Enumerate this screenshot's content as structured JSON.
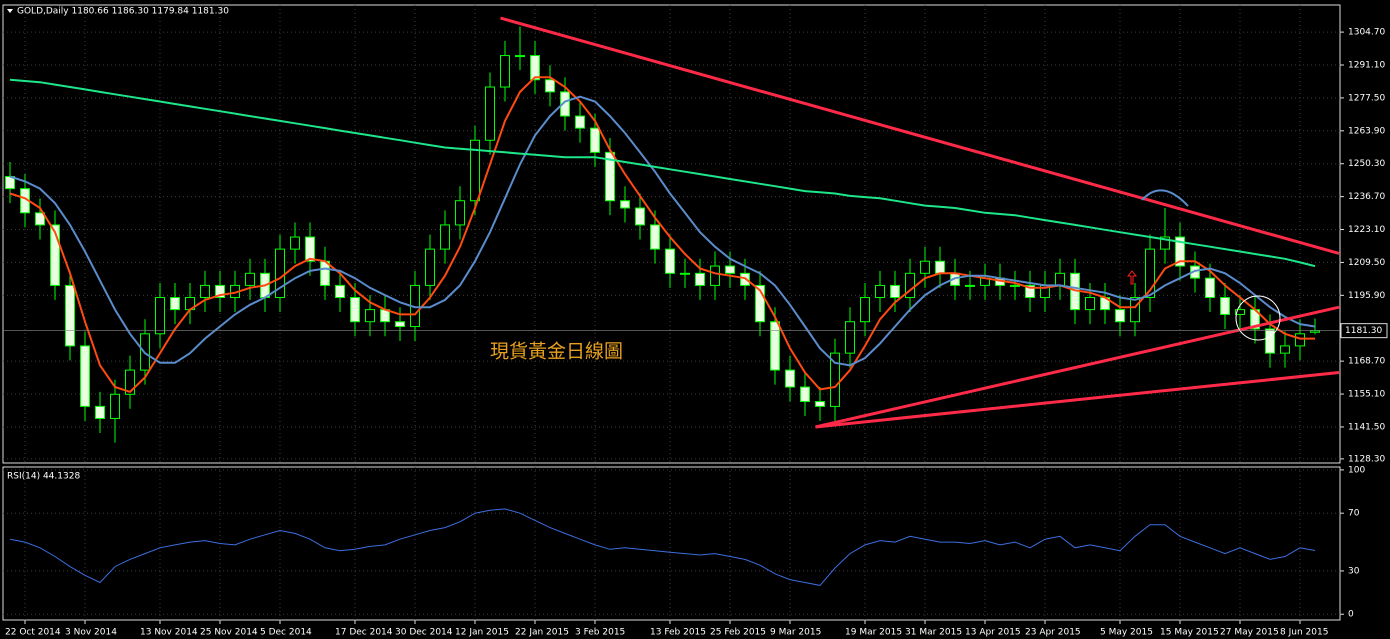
{
  "chart_data": {
    "type": "candlestick",
    "title": "GOLD,Daily  1180.66 1186.30 1179.84 1181.30",
    "annotation": "現貨黃金日線圖",
    "categories": [
      null,
      "22 Oct 2014",
      null,
      null,
      null,
      "3 Nov 2014",
      null,
      null,
      null,
      null,
      "13 Nov 2014",
      null,
      null,
      null,
      "25 Nov 2014",
      null,
      null,
      null,
      "5 Dec 2014",
      null,
      null,
      null,
      null,
      "17 Dec 2014",
      null,
      null,
      null,
      "30 Dec 2014",
      null,
      null,
      null,
      "12 Jan 2015",
      null,
      null,
      null,
      "22 Jan 2015",
      null,
      null,
      null,
      "3 Feb 2015",
      null,
      null,
      null,
      null,
      "13 Feb 2015",
      null,
      null,
      null,
      "25 Feb 2015",
      null,
      null,
      null,
      "9 Mar 2015",
      null,
      null,
      null,
      null,
      "19 Mar 2015",
      null,
      null,
      null,
      "31 Mar 2015",
      null,
      null,
      null,
      "13 Apr 2015",
      null,
      null,
      null,
      "23 Apr 2015",
      null,
      null,
      null,
      null,
      "5 May 2015",
      null,
      null,
      null,
      "15 May 2015",
      null,
      null,
      null,
      "27 May 2015",
      null,
      null,
      null,
      "8 Jun 2015",
      null
    ],
    "open": [
      1245,
      1240,
      1230,
      1225,
      1200,
      1175,
      1150,
      1145,
      1155,
      1165,
      1180,
      1195,
      1190,
      1195,
      1200,
      1195,
      1200,
      1205,
      1195,
      1215,
      1220,
      1210,
      1200,
      1195,
      1185,
      1190,
      1185,
      1183,
      1200,
      1215,
      1225,
      1235,
      1260,
      1282,
      1295,
      1295,
      1285,
      1280,
      1270,
      1265,
      1255,
      1235,
      1232,
      1225,
      1215,
      1205,
      1205,
      1200,
      1208,
      1205,
      1200,
      1185,
      1165,
      1158,
      1152,
      1150,
      1172,
      1185,
      1195,
      1200,
      1195,
      1205,
      1210,
      1205,
      1200,
      1200,
      1203,
      1200,
      1200,
      1195,
      1200,
      1205,
      1190,
      1195,
      1190,
      1185,
      1195,
      1215,
      1220,
      1208,
      1203,
      1195,
      1188,
      1190,
      1182,
      1172,
      1175,
      1180.66
    ],
    "high": [
      1251,
      1246,
      1236,
      1231,
      1206,
      1181,
      1156,
      1161,
      1171,
      1186,
      1201,
      1201,
      1201,
      1206,
      1206,
      1206,
      1211,
      1211,
      1221,
      1226,
      1226,
      1216,
      1206,
      1201,
      1196,
      1196,
      1191,
      1206,
      1221,
      1231,
      1241,
      1266,
      1288,
      1301,
      1307,
      1301,
      1291,
      1286,
      1276,
      1271,
      1261,
      1241,
      1238,
      1231,
      1221,
      1211,
      1211,
      1214,
      1214,
      1211,
      1206,
      1191,
      1171,
      1164,
      1158,
      1178,
      1191,
      1201,
      1206,
      1206,
      1211,
      1216,
      1216,
      1211,
      1206,
      1209,
      1209,
      1206,
      1206,
      1206,
      1211,
      1211,
      1201,
      1201,
      1196,
      1201,
      1221,
      1232,
      1226,
      1214,
      1209,
      1201,
      1196,
      1196,
      1188,
      1181,
      1186,
      1186.3
    ],
    "low": [
      1234,
      1224,
      1219,
      1194,
      1169,
      1144,
      1139,
      1135,
      1149,
      1159,
      1174,
      1184,
      1184,
      1189,
      1189,
      1189,
      1194,
      1189,
      1189,
      1209,
      1204,
      1194,
      1189,
      1179,
      1179,
      1179,
      1177,
      1177,
      1194,
      1209,
      1219,
      1229,
      1254,
      1276,
      1289,
      1279,
      1274,
      1264,
      1259,
      1249,
      1229,
      1226,
      1219,
      1209,
      1199,
      1199,
      1194,
      1194,
      1199,
      1194,
      1179,
      1159,
      1152,
      1146,
      1144,
      1144,
      1166,
      1179,
      1189,
      1189,
      1189,
      1199,
      1199,
      1194,
      1194,
      1194,
      1194,
      1194,
      1189,
      1189,
      1194,
      1184,
      1184,
      1184,
      1179,
      1179,
      1189,
      1209,
      1202,
      1197,
      1189,
      1182,
      1182,
      1176,
      1166,
      1166,
      1169,
      1179.84
    ],
    "close": [
      1240,
      1230,
      1225,
      1200,
      1175,
      1150,
      1145,
      1155,
      1165,
      1180,
      1195,
      1190,
      1195,
      1200,
      1195,
      1200,
      1205,
      1195,
      1215,
      1220,
      1210,
      1200,
      1195,
      1185,
      1190,
      1185,
      1183,
      1200,
      1215,
      1225,
      1235,
      1260,
      1282,
      1295,
      1295,
      1285,
      1280,
      1270,
      1265,
      1255,
      1235,
      1232,
      1225,
      1215,
      1205,
      1205,
      1200,
      1208,
      1205,
      1200,
      1185,
      1165,
      1158,
      1152,
      1150,
      1172,
      1185,
      1195,
      1200,
      1195,
      1205,
      1210,
      1205,
      1200,
      1200,
      1203,
      1200,
      1200,
      1195,
      1200,
      1205,
      1190,
      1195,
      1190,
      1185,
      1195,
      1215,
      1220,
      1208,
      1203,
      1195,
      1188,
      1190,
      1182,
      1172,
      1175,
      1180,
      1181.3
    ],
    "up_color": "#000000",
    "down_color": "#e8ffe0",
    "candle_outline": "#00ff00",
    "moving_averages": [
      {
        "color": "#ff4a12",
        "values": [
          1238,
          1236,
          1232,
          1222,
          1205,
          1185,
          1167,
          1158,
          1156,
          1162,
          1172,
          1182,
          1190,
          1194,
          1196,
          1197,
          1199,
          1200,
          1203,
          1208,
          1211,
          1210,
          1205,
          1198,
          1193,
          1190,
          1188,
          1188,
          1195,
          1204,
          1216,
          1232,
          1250,
          1268,
          1280,
          1286,
          1286,
          1282,
          1276,
          1268,
          1256,
          1246,
          1237,
          1228,
          1220,
          1213,
          1207,
          1205,
          1204,
          1203,
          1198,
          1187,
          1174,
          1164,
          1157,
          1158,
          1165,
          1175,
          1186,
          1193,
          1198,
          1203,
          1205,
          1205,
          1204,
          1203,
          1202,
          1201,
          1199,
          1199,
          1200,
          1198,
          1197,
          1195,
          1191,
          1191,
          1198,
          1207,
          1210,
          1210,
          1206,
          1200,
          1195,
          1190,
          1184,
          1180,
          1178,
          1178
        ]
      },
      {
        "color": "#5a8ccc",
        "values": [
          1245,
          1243,
          1240,
          1234,
          1225,
          1214,
          1202,
          1190,
          1180,
          1172,
          1168,
          1168,
          1172,
          1178,
          1183,
          1188,
          1192,
          1195,
          1199,
          1203,
          1206,
          1207,
          1206,
          1203,
          1199,
          1196,
          1193,
          1191,
          1191,
          1194,
          1200,
          1210,
          1222,
          1236,
          1250,
          1262,
          1270,
          1276,
          1278,
          1276,
          1270,
          1263,
          1255,
          1247,
          1238,
          1230,
          1222,
          1216,
          1211,
          1208,
          1205,
          1200,
          1192,
          1183,
          1174,
          1168,
          1167,
          1170,
          1176,
          1183,
          1190,
          1196,
          1200,
          1203,
          1204,
          1204,
          1203,
          1202,
          1201,
          1200,
          1200,
          1199,
          1198,
          1197,
          1195,
          1194,
          1196,
          1200,
          1203,
          1206,
          1207,
          1205,
          1201,
          1196,
          1191,
          1187,
          1184,
          1183
        ]
      },
      {
        "color": "#1ee68a",
        "values": [
          1285,
          1284.5,
          1284,
          1283,
          1282,
          1281,
          1280,
          1279,
          1278,
          1277,
          1276,
          1275,
          1274,
          1273,
          1272,
          1271,
          1270,
          1269,
          1268,
          1267,
          1266,
          1265,
          1264,
          1263,
          1262,
          1261,
          1260,
          1259,
          1258,
          1257,
          1256.5,
          1256,
          1255.5,
          1255,
          1254.5,
          1254,
          1253.5,
          1253,
          1253,
          1253,
          1252,
          1251,
          1250,
          1249,
          1248,
          1247,
          1246,
          1245,
          1244,
          1243,
          1242,
          1241,
          1240,
          1239,
          1238.5,
          1238,
          1237,
          1236.5,
          1236,
          1235,
          1234,
          1233,
          1232.5,
          1232,
          1231,
          1230,
          1229.5,
          1229,
          1228,
          1227,
          1226,
          1225,
          1224,
          1223,
          1222,
          1221,
          1220,
          1219,
          1218,
          1217,
          1216,
          1215,
          1214,
          1213,
          1212,
          1211,
          1209.5,
          1208
        ]
      }
    ],
    "trendlines": [
      {
        "color": "#ff2a48",
        "x": [
          32.7,
          88.6
        ],
        "y": [
          1310.5,
          1213.2
        ]
      },
      {
        "color": "#ff2a48",
        "x": [
          53.7,
          88.6
        ],
        "y": [
          1141.5,
          1191.0
        ]
      },
      {
        "color": "#ff2a48",
        "x": [
          53.7,
          88.6
        ],
        "y": [
          1141.5,
          1164.0
        ]
      }
    ],
    "ylim": [
      1126.6,
      1315.9
    ],
    "yticks": [
      {
        "value": 1304.7,
        "label": "1304.70"
      },
      {
        "value": 1291.1,
        "label": "1291.10"
      },
      {
        "value": 1277.5,
        "label": "1277.50"
      },
      {
        "value": 1263.9,
        "label": "1263.90"
      },
      {
        "value": 1250.3,
        "label": "1250.30"
      },
      {
        "value": 1236.7,
        "label": "1236.70"
      },
      {
        "value": 1223.1,
        "label": "1223.10"
      },
      {
        "value": 1209.5,
        "label": "1209.50"
      },
      {
        "value": 1195.9,
        "label": "1195.90"
      },
      {
        "value": 1168.7,
        "label": "1168.70"
      },
      {
        "value": 1155.1,
        "label": "1155.10"
      },
      {
        "value": 1141.5,
        "label": "1141.50"
      },
      {
        "value": 1128.3,
        "label": "1128.30"
      }
    ],
    "last_price": {
      "value": 1181.3,
      "label": "1181.30"
    },
    "grid": true,
    "rsi": {
      "title": "RSI(14) 44.1328",
      "color": "#3d6ee0",
      "ylim": [
        -4,
        102
      ],
      "yticks": [
        100,
        70,
        30,
        0
      ],
      "values": [
        52,
        50,
        46,
        40,
        33,
        27,
        22,
        33,
        38,
        42,
        46,
        48,
        50,
        51,
        49,
        48,
        52,
        55,
        58,
        56,
        52,
        46,
        44,
        45,
        47,
        48,
        52,
        55,
        58,
        60,
        64,
        70,
        72,
        73,
        70,
        65,
        60,
        56,
        52,
        48,
        45,
        46,
        45,
        44,
        43,
        42,
        41,
        42,
        40,
        38,
        34,
        28,
        24,
        22,
        20,
        32,
        42,
        48,
        51,
        50,
        54,
        52,
        50,
        50,
        49,
        51,
        48,
        50,
        46,
        52,
        54,
        46,
        48,
        46,
        44,
        54,
        62,
        62,
        54,
        50,
        46,
        42,
        46,
        42,
        38,
        40,
        46,
        44.1328
      ]
    }
  }
}
